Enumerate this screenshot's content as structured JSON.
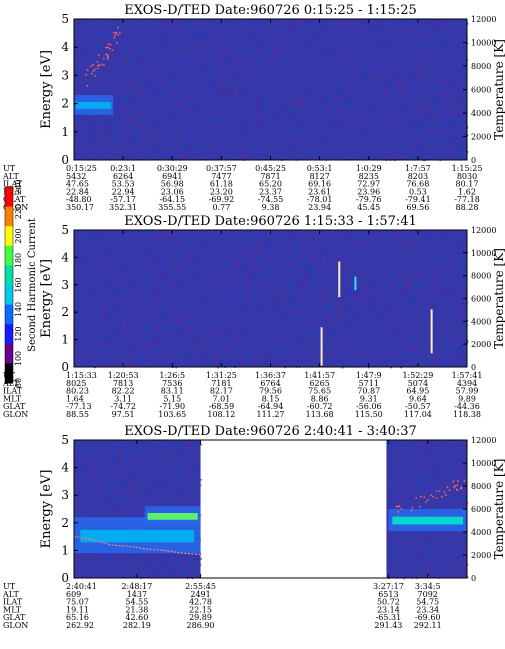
{
  "chart_data": [
    {
      "type": "heatmap",
      "title": "EXOS-D/TED   Date:960726  0:15:25 - 1:15:25",
      "ylabel": "Energy [eV]",
      "y2label": "Temperature [K]",
      "ylim": [
        0,
        5
      ],
      "y2lim": [
        0,
        12000
      ],
      "yticks": [
        "0",
        "1",
        "2",
        "3",
        "4",
        "5"
      ],
      "y2ticks": [
        "0",
        "2000",
        "4000",
        "6000",
        "8000",
        "10000",
        "12000"
      ],
      "data_coverage": [
        [
          0,
          1
        ]
      ],
      "features": [
        {
          "kind": "band",
          "t0": 0.0,
          "t1": 0.1,
          "e0": 1.6,
          "e1": 2.3,
          "level": 0.65
        },
        {
          "kind": "dots",
          "t0": 0.03,
          "t1": 0.12,
          "e0": 2.4,
          "e1": 4.7
        }
      ],
      "table": {
        "row_labels": [
          "UT",
          "ALT",
          "ILAT",
          "MLT",
          "GLAT",
          "GLON"
        ],
        "columns": [
          [
            "0:15:25",
            "5432",
            "47.65",
            "22.84",
            "-48.80",
            "350.17"
          ],
          [
            "0:23:1",
            "6264",
            "53.53",
            "22.94",
            "-57.17",
            "352.31"
          ],
          [
            "0:30:29",
            "6941",
            "56.98",
            "23.06",
            "-64.15",
            "355.55"
          ],
          [
            "0:37:57",
            "7477",
            "61.18",
            "23.20",
            "-69.92",
            "0.77"
          ],
          [
            "0:45:25",
            "7871",
            "65.20",
            "23.37",
            "-74.55",
            "9.38"
          ],
          [
            "0:53:1",
            "8127",
            "69.16",
            "23.61",
            "-78.01",
            "23.94"
          ],
          [
            "1:0:29",
            "8235",
            "72.97",
            "23.96",
            "-79.76",
            "45.45"
          ],
          [
            "1:7:57",
            "8203",
            "76.68",
            "0.53",
            "-79.41",
            "69.56"
          ],
          [
            "1:15:25",
            "8030",
            "80.17",
            "1.62",
            "-77.18",
            "88.28"
          ]
        ]
      }
    },
    {
      "type": "heatmap",
      "title": "EXOS-D/TED   Date:960726  1:15:33 - 1:57:41",
      "ylabel": "Energy [eV]",
      "y2label": "Temperature [K]",
      "ylim": [
        0,
        5
      ],
      "y2lim": [
        0,
        12000
      ],
      "yticks": [
        "0",
        "1",
        "2",
        "3",
        "4",
        "5"
      ],
      "y2ticks": [
        "0",
        "2000",
        "4000",
        "6000",
        "8000",
        "10000",
        "12000"
      ],
      "colorbar": {
        "label": "Second Harmonic Current",
        "ticks": [
          "80",
          "100",
          "120",
          "140",
          "160",
          "180",
          "200",
          "220",
          "240"
        ],
        "colors": [
          "#000000",
          "#6b0090",
          "#1a1aff",
          "#0a6bff",
          "#00c8f0",
          "#00e0a0",
          "#40ff40",
          "#ffff00",
          "#ff8000",
          "#ff0000"
        ]
      },
      "data_coverage": [
        [
          0,
          1
        ]
      ],
      "features": [
        {
          "kind": "line",
          "t": 0.63,
          "e0": 0.05,
          "e1": 1.45
        },
        {
          "kind": "line",
          "t": 0.675,
          "e0": 2.55,
          "e1": 3.85
        },
        {
          "kind": "line",
          "t": 0.91,
          "e0": 0.5,
          "e1": 2.1
        },
        {
          "kind": "tick",
          "t": 0.716,
          "e0": 2.8,
          "e1": 3.3
        }
      ],
      "table": {
        "row_labels": [
          "UT",
          "ALT",
          "ILAT",
          "MLT",
          "GLAT",
          "GLON"
        ],
        "columns": [
          [
            "1:15:33",
            "8025",
            "80.23",
            "1.64",
            "-77.13",
            "88.55"
          ],
          [
            "1:20:53",
            "7813",
            "82.22",
            "3.11",
            "-74.72",
            "97.51"
          ],
          [
            "1:26:5",
            "7536",
            "83.11",
            "5.15",
            "-71.90",
            "103.65"
          ],
          [
            "1:31:25",
            "7181",
            "82.17",
            "7.01",
            "-68.59",
            "108.12"
          ],
          [
            "1:36:37",
            "6764",
            "79.56",
            "8.15",
            "-64.94",
            "111.27"
          ],
          [
            "1:41:57",
            "6265",
            "75.65",
            "8.86",
            "-60.72",
            "113.68"
          ],
          [
            "1:47:9",
            "5711",
            "70.87",
            "9.31",
            "-56.06",
            "115.50"
          ],
          [
            "1:52:29",
            "5074",
            "64.95",
            "9.64",
            "-50.57",
            "117.04"
          ],
          [
            "1:57:41",
            "4394",
            "57.99",
            "9.89",
            "-44.36",
            "118.38"
          ]
        ]
      }
    },
    {
      "type": "heatmap",
      "title": "EXOS-D/TED   Date:960726  2:40:41 - 3:40:37",
      "ylabel": "Energy [eV]",
      "y2label": "Temperature [K]",
      "ylim": [
        0,
        5
      ],
      "y2lim": [
        0,
        12000
      ],
      "yticks": [
        "0",
        "1",
        "2",
        "3",
        "4",
        "5"
      ],
      "y2ticks": [
        "0",
        "2000",
        "4000",
        "6000",
        "8000",
        "10000",
        "12000"
      ],
      "data_coverage": [
        [
          0,
          0.322
        ],
        [
          0.795,
          1
        ]
      ],
      "features": [
        {
          "kind": "band",
          "t0": 0.0,
          "t1": 0.322,
          "e0": 0.9,
          "e1": 2.2,
          "level": 0.6
        },
        {
          "kind": "band",
          "t0": 0.18,
          "t1": 0.322,
          "e0": 1.9,
          "e1": 2.6,
          "level": 0.85
        },
        {
          "kind": "band",
          "t0": 0.8,
          "t1": 1.0,
          "e0": 1.7,
          "e1": 2.5,
          "level": 0.7
        },
        {
          "kind": "curve",
          "t0": 0.0,
          "t1": 0.322,
          "e": [
            1.5,
            1.4,
            1.2,
            1.15,
            1.05,
            1.0,
            0.9,
            0.85
          ]
        },
        {
          "kind": "dots",
          "t0": 0.82,
          "t1": 1.0,
          "e0": 2.2,
          "e1": 3.6
        }
      ],
      "table": {
        "row_labels": [
          "UT",
          "ALT",
          "ILAT",
          "MLT",
          "GLAT",
          "GLON"
        ],
        "columns": [
          [
            "2:40:41",
            "609",
            "75.07",
            "19.11",
            "65.16",
            "262.92"
          ],
          [
            "2:48:17",
            "1437",
            "54.55",
            "21.38",
            "42.60",
            "282.19"
          ],
          [
            "2:55:45",
            "2491",
            "42.78",
            "22.15",
            "29.89",
            "286.90"
          ],
          [
            "3:27:17",
            "6513",
            "50.72",
            "23.14",
            "-65.31",
            "291.43"
          ],
          [
            "3:34:5",
            "7092",
            "54.75",
            "23.34",
            "-69.60",
            "292.11"
          ]
        ]
      }
    }
  ]
}
